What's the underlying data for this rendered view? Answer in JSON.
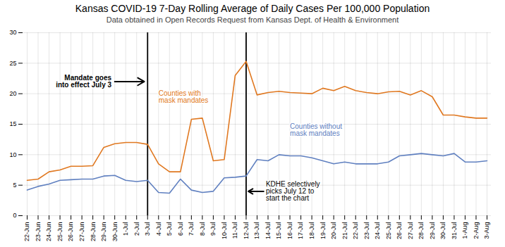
{
  "chart_data": {
    "type": "line",
    "title": "Kansas COVID-19 7-Day Rolling Average of Daily Cases Per 100,000 Population",
    "subtitle": "Data obtained in Open Records Request from Kansas Dept. of Health & Environment",
    "categories": [
      "22-Jun",
      "23-Jun",
      "24-Jun",
      "25-Jun",
      "26-Jun",
      "27-Jun",
      "28-Jun",
      "29-Jun",
      "30-Jun",
      "1-Jul",
      "2-Jul",
      "3-Jul",
      "4-Jul",
      "5-Jul",
      "6-Jul",
      "7-Jul",
      "8-Jul",
      "9-Jul",
      "10-Jul",
      "11-Jul",
      "12-Jul",
      "13-Jul",
      "14-Jul",
      "15-Jul",
      "16-Jul",
      "17-Jul",
      "18-Jul",
      "19-Jul",
      "20-Jul",
      "21-Jul",
      "22-Jul",
      "23-Jul",
      "24-Jul",
      "25-Jul",
      "26-Jul",
      "27-Jul",
      "28-Jul",
      "29-Jul",
      "30-Jul",
      "31-Jul",
      "1-Aug",
      "2-Aug",
      "3-Aug"
    ],
    "series": [
      {
        "name": "Counties with\nmask mandates",
        "color": "#E07820",
        "values": [
          5.8,
          6.0,
          7.2,
          7.5,
          8.1,
          8.1,
          8.2,
          11.2,
          11.8,
          12.0,
          12.0,
          11.7,
          8.5,
          7.2,
          7.2,
          15.8,
          16.0,
          9.0,
          9.2,
          23.0,
          25.3,
          19.8,
          20.2,
          20.4,
          20.2,
          20.1,
          20.0,
          20.9,
          20.5,
          21.2,
          20.5,
          20.2,
          20.0,
          20.3,
          20.4,
          19.8,
          20.5,
          19.5,
          16.5,
          16.5,
          16.2,
          16.0,
          16.0
        ]
      },
      {
        "name": "Counties without\nmask mandates",
        "color": "#6080C0",
        "values": [
          4.2,
          4.8,
          5.2,
          5.8,
          5.9,
          6.0,
          6.0,
          6.5,
          6.6,
          5.8,
          5.6,
          5.8,
          3.8,
          3.7,
          6.0,
          4.2,
          3.8,
          4.0,
          6.2,
          6.3,
          6.5,
          9.2,
          9.0,
          10.0,
          9.8,
          9.8,
          9.5,
          9.0,
          8.5,
          8.8,
          8.5,
          8.5,
          8.5,
          8.8,
          9.8,
          10.0,
          10.2,
          10.0,
          9.8,
          10.2,
          8.8,
          8.8,
          9.0
        ]
      }
    ],
    "annotations": [
      {
        "text": "Mandate goes\ninto effect July 3",
        "x": "3-Jul",
        "color": "#000000"
      },
      {
        "text": "KDHE selectively\npicks July 12 to\nstart the chart",
        "x": "12-Jul",
        "color": "#000000"
      }
    ],
    "ylim": [
      0,
      30
    ],
    "yticks": [
      0,
      5,
      10,
      15,
      20,
      25,
      30
    ],
    "grid": true
  }
}
